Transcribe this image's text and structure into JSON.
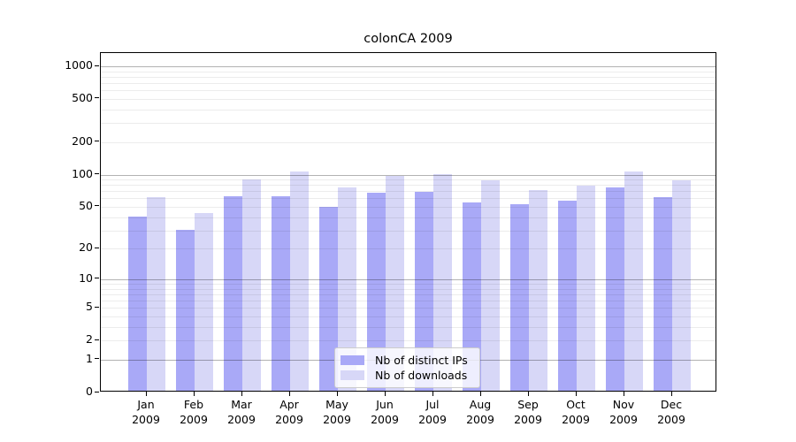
{
  "chart_data": {
    "type": "bar",
    "title": "colonCA 2009",
    "categories": [
      "Jan",
      "Feb",
      "Mar",
      "Apr",
      "May",
      "Jun",
      "Jul",
      "Aug",
      "Sep",
      "Oct",
      "Nov",
      "Dec"
    ],
    "category_year": "2009",
    "series": [
      {
        "name": "Nb of distinct IPs",
        "color": "#a9a9f7",
        "values": [
          39,
          29,
          60,
          60,
          48,
          65,
          66,
          53,
          51,
          55,
          73,
          59
        ]
      },
      {
        "name": "Nb of downloads",
        "color": "#d7d7f7",
        "values": [
          59,
          42,
          87,
          103,
          73,
          93,
          97,
          85,
          69,
          76,
          103,
          85
        ]
      }
    ],
    "yscale": "log10(value+1)",
    "yticks": [
      0,
      1,
      2,
      5,
      10,
      20,
      50,
      100,
      200,
      500,
      1000
    ],
    "major_gridlines": [
      1,
      10,
      100,
      1000
    ],
    "grid": true,
    "legend_position": "lower-center",
    "xlabel": "",
    "ylabel": ""
  }
}
